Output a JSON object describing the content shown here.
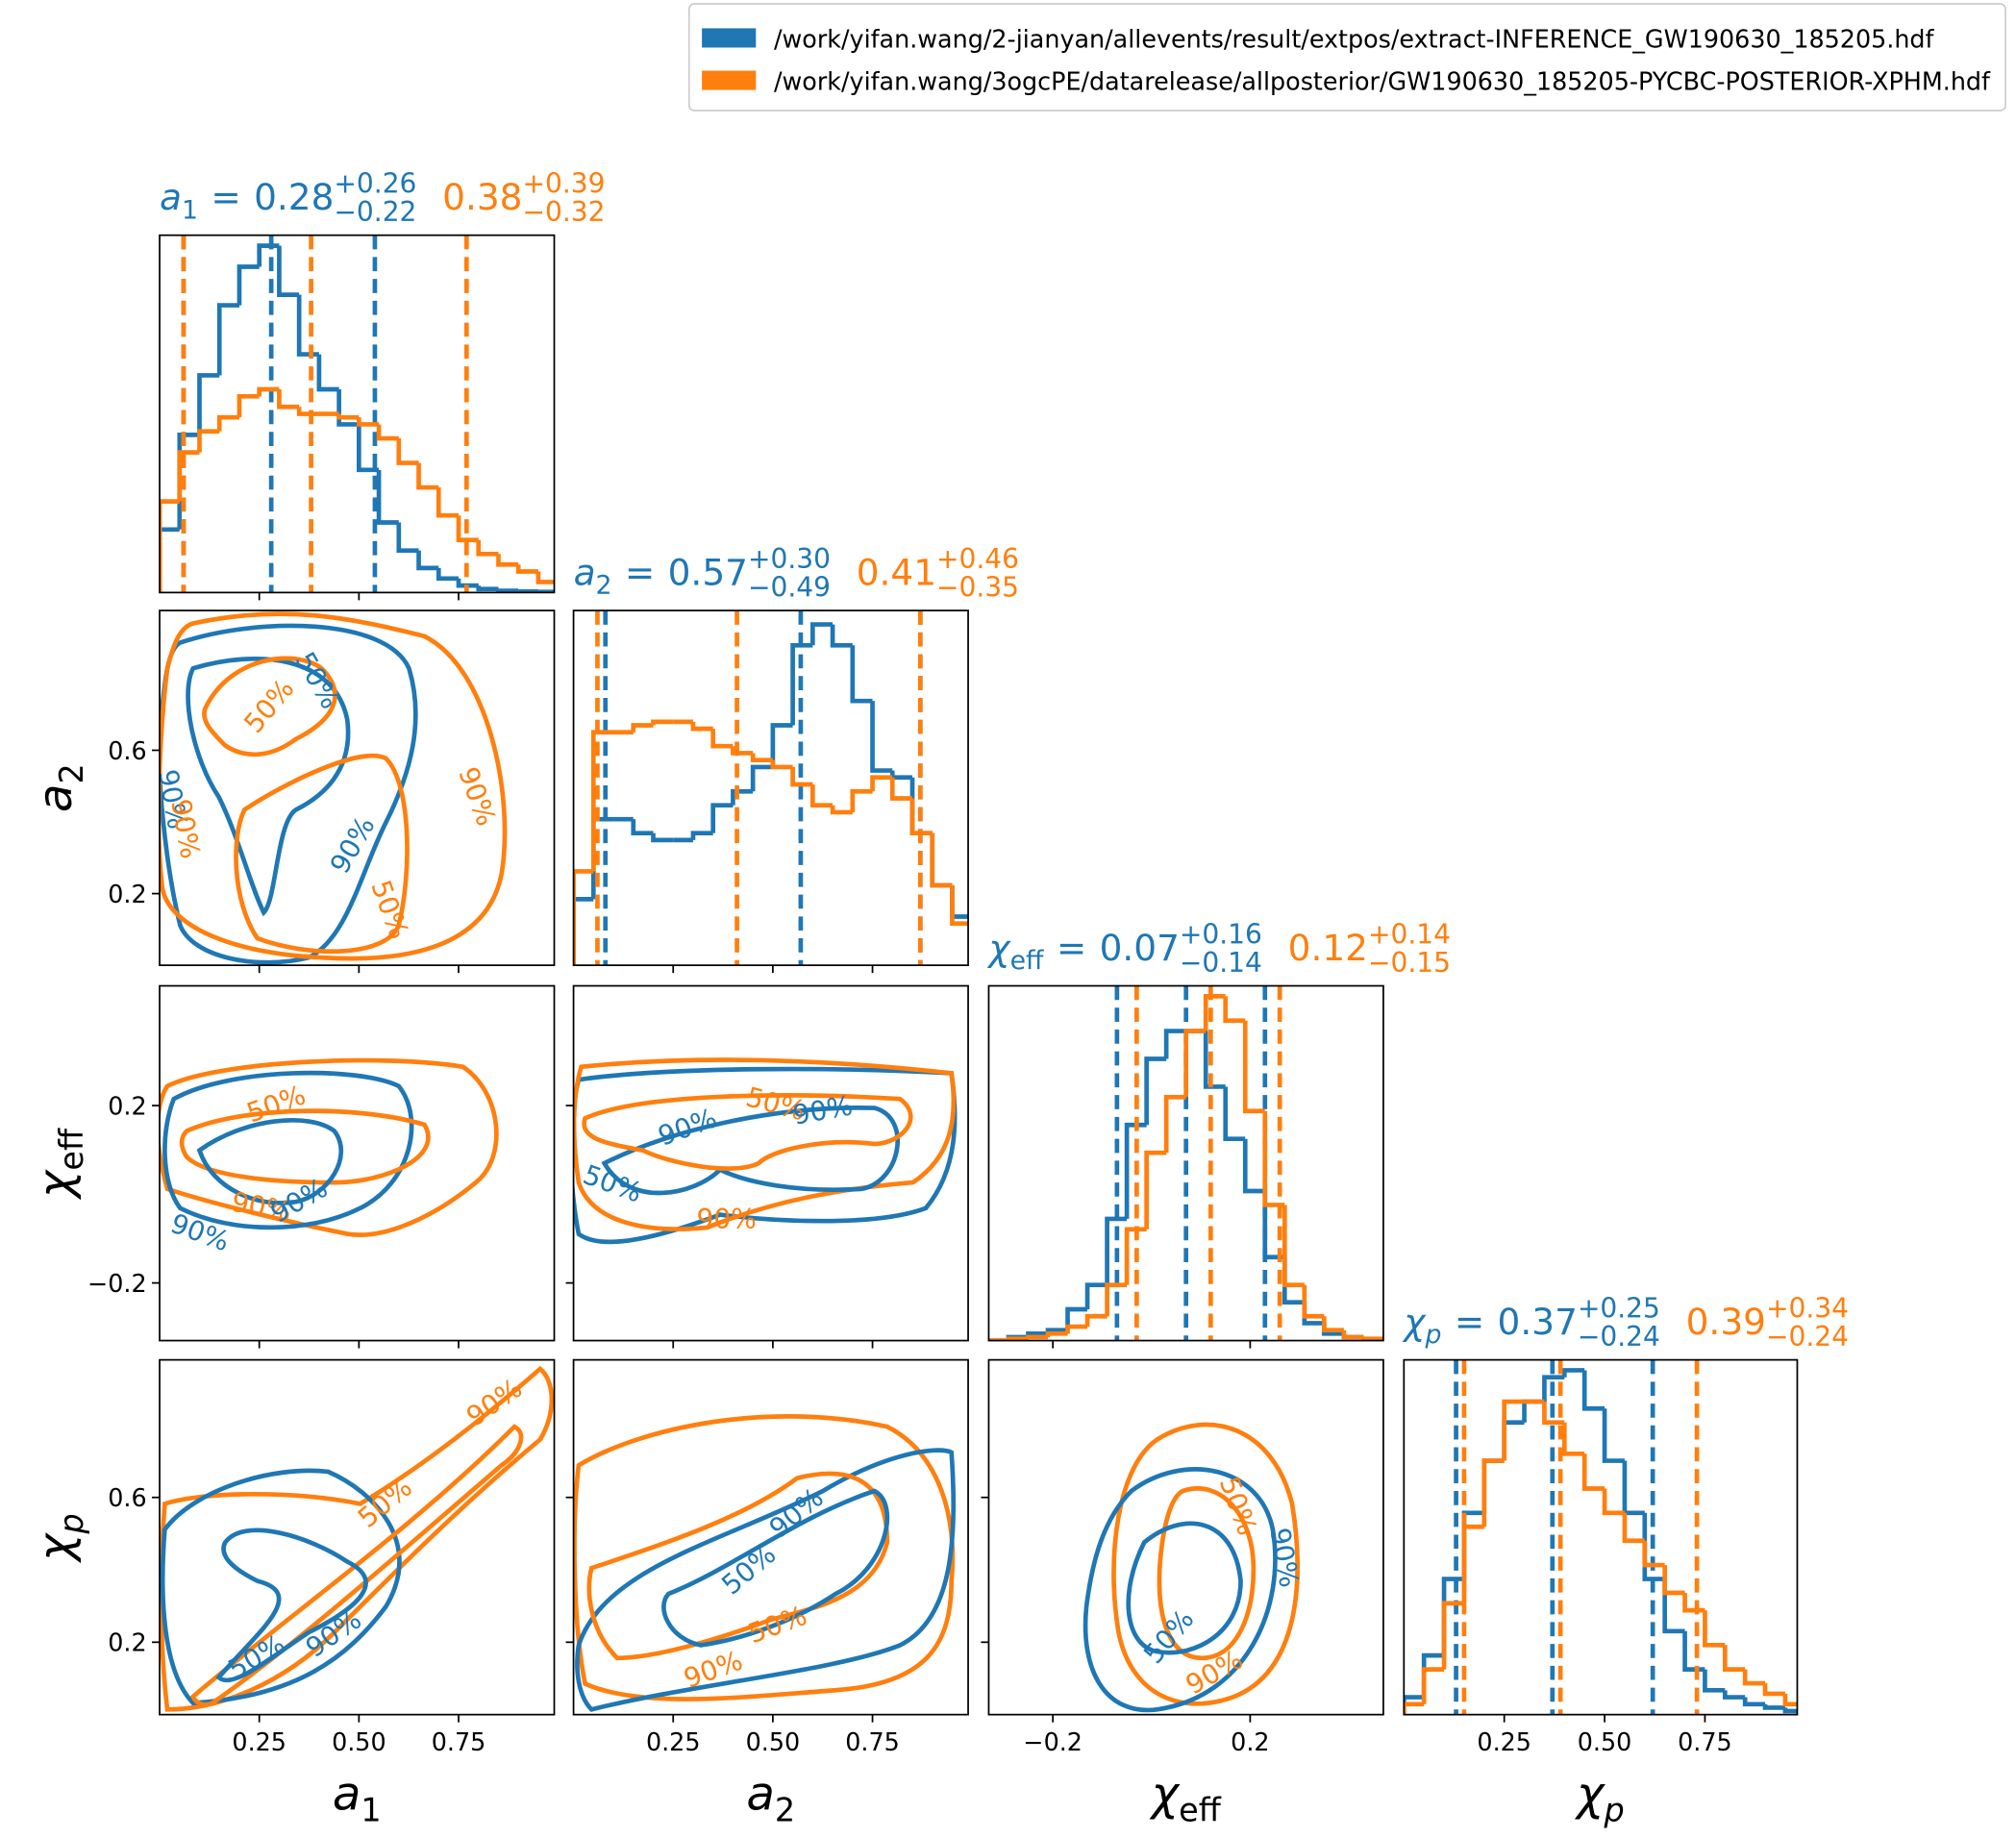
{
  "chart_data": {
    "type": "corner",
    "legend": "upper right",
    "series": [
      {
        "name": "/work/yifan.wang/2-jianyan/allevents/result/extpos/extract-INFERENCE_GW190630_185205.hdf",
        "color": "#1f77b4"
      },
      {
        "name": "/work/yifan.wang/3ogcPE/datarelease/allposterior/GW190630_185205-PYCBC-POSTERIOR-XPHM.hdf",
        "color": "#ff7f0e"
      }
    ],
    "title_sep": "=",
    "contour_levels": [
      "50%",
      "90%"
    ],
    "params": [
      {
        "symbol": "a",
        "subscript": "1",
        "lim": [
          0,
          0.99
        ],
        "xticks": [
          0.25,
          {
            "value": 0.5,
            "label": "0.50"
          },
          0.75
        ],
        "yticks": [],
        "hist_ylim": [
          0,
          102
        ],
        "bins": [
          0,
          0.05,
          0.1,
          0.15,
          0.2,
          0.25,
          0.3,
          0.35,
          0.4,
          0.45,
          0.5,
          0.55,
          0.6,
          0.65,
          0.7,
          0.75,
          0.8,
          0.85,
          0.9,
          0.95,
          1.0
        ],
        "hists": [
          {
            "values": [
              18,
              45,
              62,
              82,
              93,
              99,
              85,
              68,
              58,
              48,
              35,
              20,
              12,
              7,
              4,
              2,
              1,
              0.5,
              0.3,
              0.2
            ],
            "lower": 0.06,
            "median": 0.28,
            "upper": 0.54,
            "plus": "+0.26",
            "minus": "−0.22"
          },
          {
            "values": [
              26,
              40,
              46,
              50,
              56,
              58,
              53,
              51,
              51,
              50,
              48,
              44,
              37,
              30,
              22,
              15,
              11,
              8,
              6,
              3
            ],
            "lower": 0.06,
            "median": 0.38,
            "upper": 0.77,
            "plus": "+0.39",
            "minus": "−0.32"
          }
        ]
      },
      {
        "symbol": "a",
        "subscript": "2",
        "lim": [
          0,
          0.99
        ],
        "xticks": [
          0.25,
          {
            "value": 0.5,
            "label": "0.50"
          },
          0.75
        ],
        "yticks": [
          0.2,
          0.6
        ],
        "hist_ylim": [
          0,
          102
        ],
        "bins": [
          0,
          0.05,
          0.1,
          0.15,
          0.2,
          0.25,
          0.3,
          0.35,
          0.4,
          0.45,
          0.5,
          0.55,
          0.6,
          0.65,
          0.7,
          0.75,
          0.8,
          0.85,
          0.9,
          0.95,
          1.0
        ],
        "hists": [
          {
            "values": [
              19,
              42,
              42,
              38,
              36,
              36,
              38,
              46,
              50,
              57,
              69,
              92,
              98,
              92,
              76,
              56,
              54,
              38,
              23,
              14
            ],
            "lower": 0.08,
            "median": 0.57,
            "upper": 0.87,
            "plus": "+0.30",
            "minus": "−0.49"
          },
          {
            "values": [
              27,
              67,
              67,
              69,
              70,
              70,
              68,
              63,
              61,
              59,
              57,
              52,
              46,
              44,
              50,
              54,
              48,
              38,
              23,
              12
            ],
            "lower": 0.06,
            "median": 0.41,
            "upper": 0.87,
            "plus": "+0.46",
            "minus": "−0.35"
          }
        ]
      },
      {
        "symbol": "χ",
        "subscript": "eff",
        "lim": [
          -0.33,
          0.47
        ],
        "xticks": [
          {
            "value": -0.2,
            "label": "−0.2"
          },
          0.2
        ],
        "yticks": [
          {
            "value": -0.2,
            "label": "−0.2"
          },
          0.2
        ],
        "hist_ylim": [
          0,
          102
        ],
        "bins": [
          -0.33,
          -0.29,
          -0.25,
          -0.21,
          -0.17,
          -0.13,
          -0.09,
          -0.05,
          -0.01,
          0.03,
          0.07,
          0.11,
          0.15,
          0.19,
          0.23,
          0.27,
          0.31,
          0.35,
          0.39,
          0.43,
          0.47
        ],
        "hists": [
          {
            "values": [
              0,
              1,
              2,
              3,
              9,
              16,
              35,
              62,
              81,
              89,
              89,
              73,
              58,
              43,
              24,
              11,
              5,
              2,
              1,
              0.3
            ],
            "lower": -0.07,
            "median": 0.07,
            "upper": 0.23,
            "plus": "+0.16",
            "minus": "−0.14"
          },
          {
            "values": [
              0,
              0.5,
              1,
              2,
              4,
              7,
              16,
              32,
              54,
              70,
              89,
              99,
              92,
              66,
              39,
              16,
              7,
              3,
              1,
              0.5
            ],
            "lower": -0.03,
            "median": 0.12,
            "upper": 0.26,
            "plus": "+0.14",
            "minus": "−0.15"
          }
        ]
      },
      {
        "symbol": "χ",
        "subscript": "p",
        "lim": [
          0,
          0.98
        ],
        "xticks": [
          0.25,
          {
            "value": 0.5,
            "label": "0.50"
          },
          0.75
        ],
        "yticks": [
          0.2,
          0.6
        ],
        "hist_ylim": [
          0,
          102
        ],
        "bins": [
          0,
          0.05,
          0.1,
          0.15,
          0.2,
          0.25,
          0.3,
          0.35,
          0.4,
          0.45,
          0.5,
          0.55,
          0.6,
          0.65,
          0.7,
          0.75,
          0.8,
          0.85,
          0.9,
          0.95,
          1.0
        ],
        "hists": [
          {
            "values": [
              5,
              17,
              39,
              58,
              73,
              84,
              90,
              97,
              99,
              88,
              73,
              58,
              39,
              24,
              13,
              7,
              5,
              3,
              2,
              1
            ],
            "lower": 0.13,
            "median": 0.37,
            "upper": 0.62,
            "plus": "+0.25",
            "minus": "−0.24"
          },
          {
            "values": [
              3,
              13,
              32,
              54,
              73,
              90,
              90,
              84,
              75,
              65,
              58,
              50,
              43,
              35,
              30,
              20,
              13,
              9,
              6,
              3
            ],
            "lower": 0.15,
            "median": 0.39,
            "upper": 0.73,
            "plus": "+0.34",
            "minus": "−0.24"
          }
        ]
      }
    ]
  }
}
